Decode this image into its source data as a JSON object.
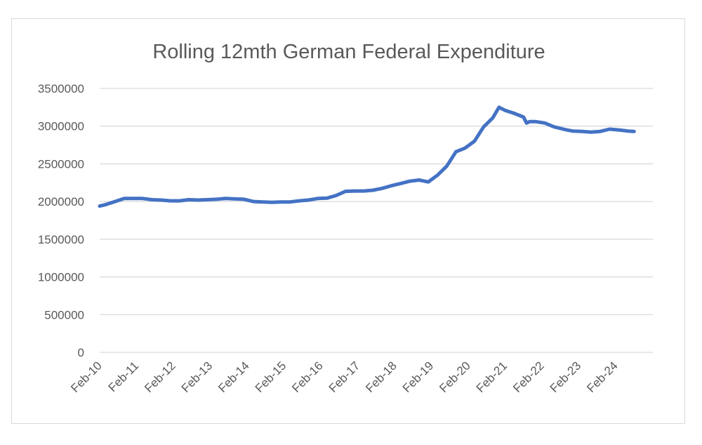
{
  "chart_data": {
    "type": "line",
    "title": "Rolling 12mth German Federal Expenditure",
    "xlabel": "",
    "ylabel": "",
    "ylim": [
      0,
      3500000
    ],
    "y_ticks": [
      "0",
      "500000",
      "1000000",
      "1500000",
      "2000000",
      "2500000",
      "3000000",
      "3500000"
    ],
    "x_ticks": [
      "Feb-10",
      "Feb-11",
      "Feb-12",
      "Feb-13",
      "Feb-14",
      "Feb-15",
      "Feb-16",
      "Feb-17",
      "Feb-18",
      "Feb-19",
      "Feb-20",
      "Feb-21",
      "Feb-22",
      "Feb-23",
      "Feb-24"
    ],
    "grid": true,
    "legend": "none",
    "series_color": "#4472c4",
    "series": [
      {
        "x": [
          "2010-02",
          "2010-04",
          "2010-07",
          "2010-10",
          "2011-01",
          "2011-04",
          "2011-07",
          "2011-10",
          "2012-01",
          "2012-04",
          "2012-07",
          "2012-10",
          "2013-01",
          "2013-04",
          "2013-07",
          "2013-10",
          "2014-01",
          "2014-04",
          "2014-07",
          "2014-10",
          "2015-01",
          "2015-04",
          "2015-07",
          "2015-10",
          "2016-01",
          "2016-04",
          "2016-07",
          "2016-10",
          "2017-01",
          "2017-04",
          "2017-07",
          "2017-10",
          "2018-01",
          "2018-04",
          "2018-07",
          "2018-10",
          "2019-01",
          "2019-04",
          "2019-07",
          "2019-10",
          "2020-01",
          "2020-04",
          "2020-07",
          "2020-10",
          "2020-12",
          "2021-02",
          "2021-05",
          "2021-08",
          "2021-09",
          "2021-10",
          "2021-12",
          "2022-03",
          "2022-06",
          "2022-09",
          "2022-10",
          "2022-12",
          "2023-03",
          "2023-06",
          "2023-09",
          "2023-12",
          "2024-03",
          "2024-06",
          "2024-08"
        ],
        "values": [
          1940000,
          1960000,
          2000000,
          2040000,
          2040000,
          2040000,
          2025000,
          2020000,
          2010000,
          2010000,
          2025000,
          2020000,
          2025000,
          2030000,
          2040000,
          2035000,
          2030000,
          2000000,
          1995000,
          1990000,
          1995000,
          1995000,
          2010000,
          2020000,
          2040000,
          2045000,
          2080000,
          2135000,
          2140000,
          2140000,
          2150000,
          2175000,
          2210000,
          2240000,
          2270000,
          2285000,
          2260000,
          2350000,
          2470000,
          2660000,
          2710000,
          2800000,
          2990000,
          3110000,
          3250000,
          3210000,
          3170000,
          3120000,
          3040000,
          3060000,
          3060000,
          3040000,
          2990000,
          2960000,
          2950000,
          2935000,
          2930000,
          2920000,
          2930000,
          2960000,
          2950000,
          2935000,
          2930000
        ]
      }
    ]
  }
}
